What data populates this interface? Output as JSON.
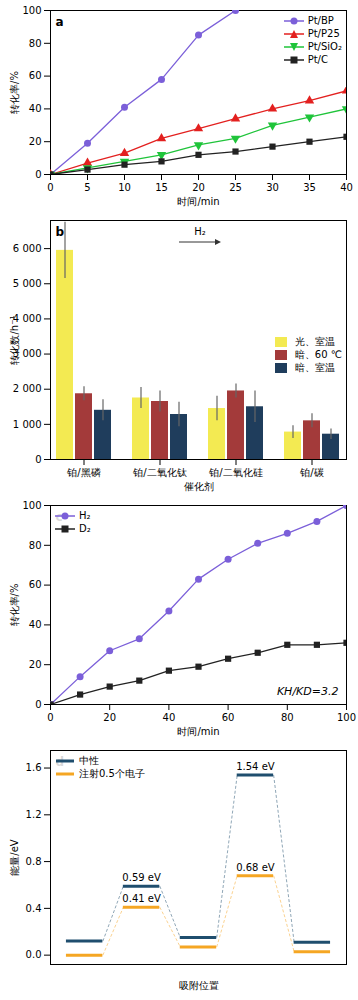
{
  "chart_data": [
    {
      "type": "line",
      "panel": "a",
      "xlabel": "时间/min",
      "ylabel": "转化率/%",
      "x": [
        0,
        5,
        10,
        15,
        20,
        25,
        30,
        35,
        40
      ],
      "xlim": [
        0,
        40
      ],
      "xticks": [
        0,
        5,
        10,
        15,
        20,
        25,
        30,
        35,
        40
      ],
      "ylim": [
        0,
        100
      ],
      "yticks": [
        0,
        20,
        40,
        60,
        80,
        100
      ],
      "grid": false,
      "legend": "top-right",
      "series": [
        {
          "name": "Pt/BP",
          "color": "#7b5fd9",
          "marker": "circle",
          "values": [
            0,
            19,
            41,
            58,
            85,
            100,
            null,
            null,
            null
          ]
        },
        {
          "name": "Pt/P25",
          "color": "#e3201f",
          "marker": "triangle-up",
          "values": [
            0,
            7,
            13,
            22,
            28,
            34,
            40,
            45,
            51
          ]
        },
        {
          "name": "Pt/SiO₂",
          "color": "#1fc43a",
          "marker": "triangle-down",
          "values": [
            0,
            4,
            8,
            12,
            18,
            22,
            30,
            35,
            40
          ]
        },
        {
          "name": "Pt/C",
          "color": "#222222",
          "marker": "square",
          "values": [
            0,
            3,
            6,
            8,
            12,
            14,
            17,
            20,
            23
          ]
        }
      ]
    },
    {
      "type": "bar",
      "panel": "b",
      "xlabel": "催化剂",
      "ylabel": "转化数/h⁻¹",
      "categories": [
        "铂/黑磷",
        "铂/二氧化钛",
        "铂/二氧化硅",
        "铂/碳"
      ],
      "ylim": [
        0,
        6800
      ],
      "yticks": [
        0,
        {
          "value": 1000,
          "label": "1 000"
        },
        {
          "value": 2000,
          "label": "2 000"
        },
        {
          "value": 3000,
          "label": "3 000"
        },
        {
          "value": 4000,
          "label": "4 000"
        },
        {
          "value": 5000,
          "label": "5 000"
        },
        {
          "value": 6000,
          "label": "6 000"
        }
      ],
      "grid": false,
      "legend": "right",
      "annotations": [
        "H₂"
      ],
      "series": [
        {
          "name": "光、室温",
          "color": "#f3ea52",
          "values": [
            5950,
            1750,
            1450,
            780
          ],
          "errors": [
            800,
            300,
            350,
            180
          ]
        },
        {
          "name": "暗、60 ℃",
          "color": "#a33a3a",
          "values": [
            1870,
            1650,
            1950,
            1100
          ],
          "errors": [
            200,
            300,
            200,
            200
          ]
        },
        {
          "name": "暗、室温",
          "color": "#1f3d5c",
          "values": [
            1400,
            1280,
            1500,
            720
          ],
          "errors": [
            300,
            350,
            450,
            150
          ]
        }
      ]
    },
    {
      "type": "line",
      "panel": "c",
      "xlabel": "时间/min",
      "ylabel": "转化率/%",
      "x": [
        0,
        10,
        20,
        30,
        40,
        50,
        60,
        70,
        80,
        90,
        100
      ],
      "xlim": [
        0,
        100
      ],
      "xticks": [
        0,
        20,
        40,
        60,
        80,
        100
      ],
      "ylim": [
        0,
        100
      ],
      "yticks": [
        0,
        20,
        40,
        60,
        80,
        100
      ],
      "grid": false,
      "legend": "top-left",
      "annotations": [
        "KH/KD=3.2"
      ],
      "series": [
        {
          "name": "H₂",
          "color": "#7b5fd9",
          "marker": "circle",
          "values": [
            0,
            14,
            27,
            33,
            47,
            63,
            73,
            81,
            86,
            92,
            100
          ]
        },
        {
          "name": "D₂",
          "color": "#222222",
          "marker": "square",
          "values": [
            0,
            5,
            9,
            12,
            17,
            19,
            23,
            26,
            30,
            30,
            31
          ]
        }
      ]
    },
    {
      "type": "energy_levels",
      "panel": "d",
      "xlabel": "吸附位置",
      "ylabel": "能量/eV",
      "ylim": [
        -0.08,
        1.75
      ],
      "yticks": [
        {
          "value": 0,
          "label": "0.0"
        },
        0.4,
        0.8,
        1.2,
        1.6
      ],
      "grid": false,
      "legend": "top-left",
      "tick_labels": "y",
      "series": [
        {
          "name": "中性",
          "color": "#1f4e6e",
          "values": [
            0.12,
            0.59,
            0.15,
            1.54,
            0.11
          ],
          "value_labels": [
            null,
            "0.59 eV",
            null,
            "1.54 eV",
            null
          ]
        },
        {
          "name": "注射0.5个电子",
          "color": "#f5a623",
          "values": [
            0.0,
            0.41,
            0.07,
            0.68,
            0.03
          ],
          "value_labels": [
            null,
            "0.41 eV",
            null,
            "0.68 eV",
            null
          ]
        }
      ]
    }
  ]
}
